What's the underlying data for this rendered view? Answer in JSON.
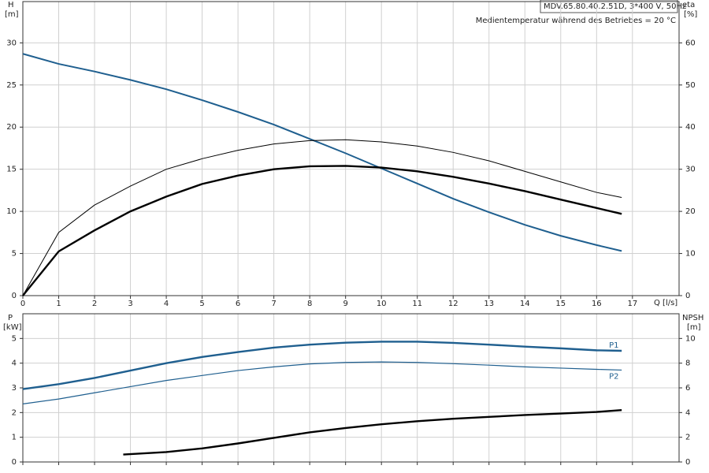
{
  "chart_data": [
    {
      "type": "line",
      "y_label": "H",
      "y_unit": "[m]",
      "y2_label": "eta",
      "y2_unit": "[%]",
      "x_label": "Q [l/s]",
      "title": "MDV.65.80.40.2.51D, 3*400 V, 50Hz",
      "subtitle": "Medientemperatur während des Betriebes = 20 °C",
      "xlim": [
        0,
        18.3
      ],
      "xticks": [
        0,
        1,
        2,
        3,
        4,
        5,
        6,
        7,
        8,
        9,
        10,
        11,
        12,
        13,
        14,
        15,
        16,
        17
      ],
      "ylim": [
        0,
        34.9
      ],
      "yticks": [
        0,
        5,
        10,
        15,
        20,
        25,
        30
      ],
      "y2lim": [
        0,
        69.8
      ],
      "y2ticks": [
        0,
        10,
        20,
        30,
        40,
        50,
        60
      ],
      "grid": true,
      "series": [
        {
          "color": "#1f5f8f",
          "linewidth": 2,
          "x": [
            0,
            1,
            2,
            3,
            4,
            5,
            6,
            7,
            8,
            9,
            10,
            11,
            12,
            13,
            14,
            15,
            16,
            16.7
          ],
          "values": [
            28.7,
            27.5,
            26.6,
            25.6,
            24.5,
            23.2,
            21.8,
            20.3,
            18.6,
            16.9,
            15.1,
            13.3,
            11.5,
            9.9,
            8.4,
            7.1,
            6.0,
            5.3
          ]
        },
        {
          "color": "#000000",
          "linewidth": 1,
          "axis": "y2",
          "x": [
            0,
            1,
            2,
            3,
            4,
            5,
            6,
            7,
            8,
            9,
            10,
            11,
            12,
            13,
            14,
            15,
            16,
            16.7
          ],
          "values": [
            0,
            15,
            21.5,
            26,
            30,
            32.5,
            34.5,
            36,
            36.8,
            37,
            36.5,
            35.5,
            34,
            32,
            29.5,
            27,
            24.5,
            23.3
          ]
        },
        {
          "color": "#000000",
          "linewidth": 2.4,
          "axis": "y2",
          "x": [
            0,
            1,
            2,
            3,
            4,
            5,
            6,
            7,
            8,
            9,
            10,
            11,
            12,
            13,
            14,
            15,
            16,
            16.7
          ],
          "values": [
            0,
            10.5,
            15.5,
            20,
            23.5,
            26.5,
            28.5,
            30,
            30.7,
            30.8,
            30.4,
            29.5,
            28.2,
            26.6,
            24.8,
            22.8,
            20.8,
            19.4
          ]
        }
      ]
    },
    {
      "type": "line",
      "y_label": "P",
      "y_unit": "[kW]",
      "y2_label": "NPSH",
      "y2_unit": "[m]",
      "xlim": [
        0,
        18.3
      ],
      "xticks": [
        0,
        1,
        2,
        3,
        4,
        5,
        6,
        7,
        8,
        9,
        10,
        11,
        12,
        13,
        14,
        15,
        16,
        17
      ],
      "ylim": [
        0,
        6
      ],
      "yticks": [
        0,
        1,
        2,
        3,
        4,
        5
      ],
      "y2lim": [
        0,
        12
      ],
      "y2ticks": [
        0,
        2,
        4,
        6,
        8,
        10
      ],
      "grid": true,
      "series": [
        {
          "name": "P1",
          "color": "#1f5f8f",
          "linewidth": 2.4,
          "x": [
            0,
            1,
            2,
            3,
            4,
            5,
            6,
            7,
            8,
            9,
            10,
            11,
            12,
            13,
            14,
            15,
            16,
            16.7
          ],
          "values": [
            2.95,
            3.15,
            3.4,
            3.7,
            4.0,
            4.25,
            4.45,
            4.63,
            4.75,
            4.83,
            4.87,
            4.87,
            4.82,
            4.75,
            4.67,
            4.6,
            4.52,
            4.5
          ]
        },
        {
          "name": "P2",
          "color": "#1f5f8f",
          "linewidth": 1.2,
          "x": [
            0,
            1,
            2,
            3,
            4,
            5,
            6,
            7,
            8,
            9,
            10,
            11,
            12,
            13,
            14,
            15,
            16,
            16.7
          ],
          "values": [
            2.35,
            2.55,
            2.8,
            3.05,
            3.3,
            3.5,
            3.7,
            3.85,
            3.97,
            4.03,
            4.05,
            4.03,
            3.98,
            3.92,
            3.85,
            3.8,
            3.75,
            3.72
          ]
        },
        {
          "color": "#000000",
          "linewidth": 2.4,
          "axis": "y2",
          "x": [
            2.8,
            4,
            5,
            6,
            7,
            8,
            9,
            10,
            11,
            12,
            13,
            14,
            15,
            16,
            16.7
          ],
          "values": [
            0.6,
            0.8,
            1.1,
            1.5,
            1.95,
            2.4,
            2.75,
            3.05,
            3.3,
            3.5,
            3.65,
            3.8,
            3.92,
            4.05,
            4.2
          ]
        }
      ]
    }
  ]
}
